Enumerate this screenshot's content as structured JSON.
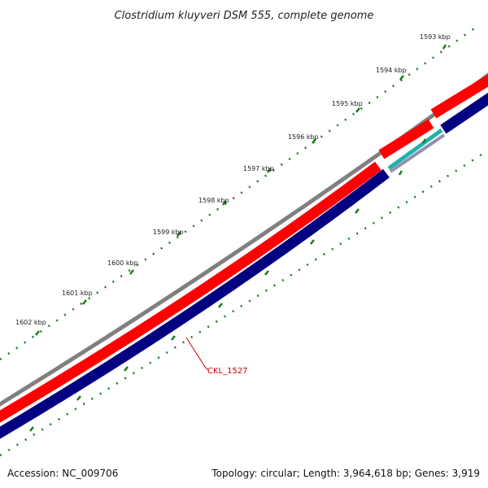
{
  "title": "Clostridium kluyveri DSM 555, complete genome",
  "ticks": [
    {
      "label": "1593 kbp"
    },
    {
      "label": "1594 kbp"
    },
    {
      "label": "1595 kbp"
    },
    {
      "label": "1596 kbp"
    },
    {
      "label": "1597 kbp"
    },
    {
      "label": "1598 kbp"
    },
    {
      "label": "1599 kbp"
    },
    {
      "label": "1600 kbp"
    },
    {
      "label": "1601 kbp"
    },
    {
      "label": "1602 kbp"
    }
  ],
  "gene_label": "CKL_1527",
  "footer": {
    "accession": "Accession: NC_009706",
    "summary": "Topology: circular; Length: 3,964,618 bp; Genes: 3,919"
  },
  "colors": {
    "backbone": "#808080",
    "forward_gene": "#ff0000",
    "reverse_gene": "#000080",
    "rna": "#20b2aa",
    "ticks": "#1a7a1a",
    "gene_label": "#cc0000"
  }
}
